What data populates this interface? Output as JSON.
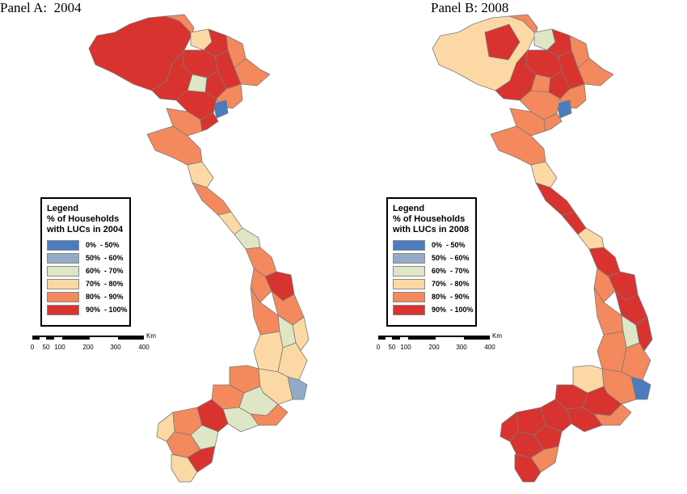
{
  "panels": [
    {
      "title": "Panel A:  2004"
    },
    {
      "title": "Panel B: 2008"
    }
  ],
  "legends": [
    {
      "title_lines": [
        "Legend",
        "% of Households",
        "with LUCs in 2004"
      ]
    },
    {
      "title_lines": [
        "Legend",
        "% of Households",
        "with LUCs in 2008"
      ]
    }
  ],
  "classes": [
    {
      "label": "0%  - 50%",
      "color": "#4a7cc0"
    },
    {
      "label": "50%  - 60%",
      "color": "#93abc8"
    },
    {
      "label": "60%  - 70%",
      "color": "#dfe6c6"
    },
    {
      "label": "70%  - 80%",
      "color": "#fcd9a4"
    },
    {
      "label": "80%  - 90%",
      "color": "#f3895c"
    },
    {
      "label": "90%  - 100%",
      "color": "#d8332f"
    }
  ],
  "scale_bar": {
    "unit": "Km",
    "ticks": [
      "0",
      "50",
      "100",
      "200",
      "300",
      "400"
    ]
  }
}
